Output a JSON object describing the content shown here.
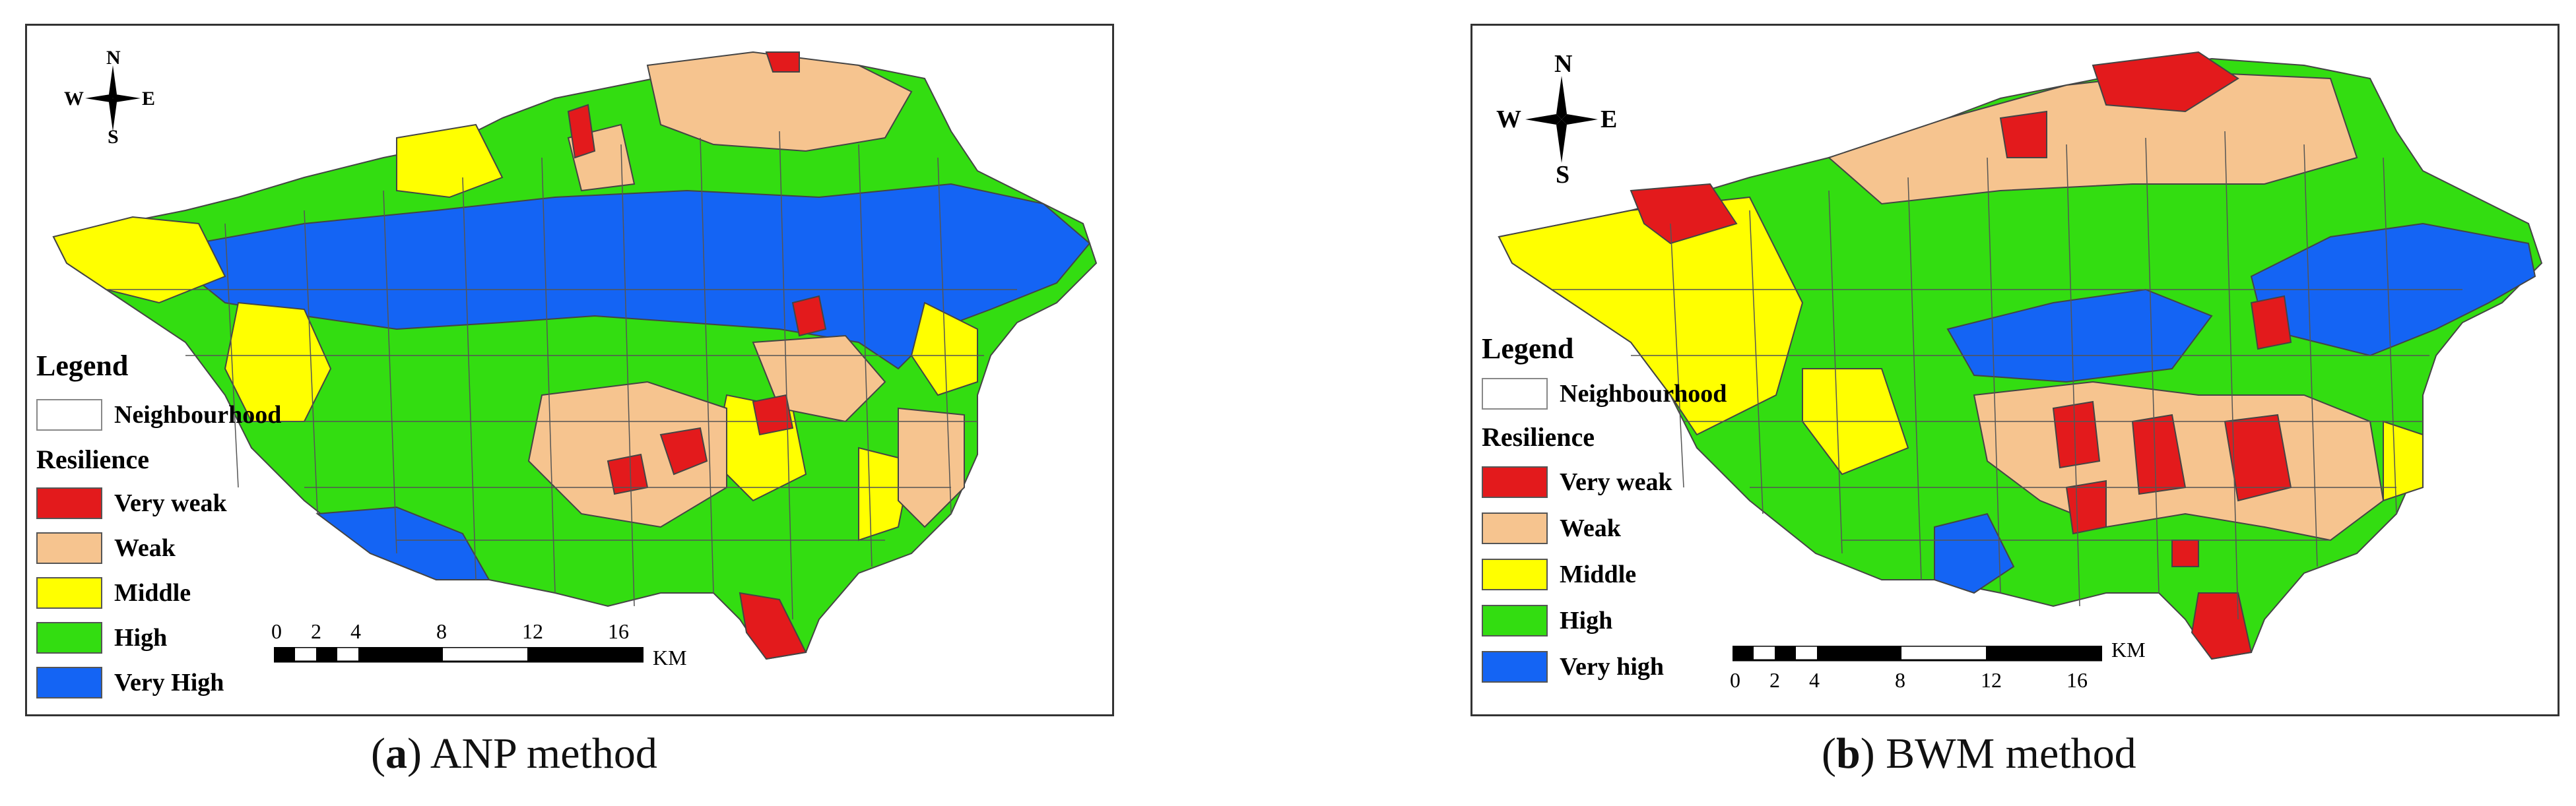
{
  "panels": [
    {
      "compass": {
        "n": "N",
        "s": "S",
        "e": "E",
        "w": "W"
      },
      "legend": {
        "title": "Legend",
        "neighbourhood": "Neighbourhood",
        "resilience_title": "Resilience",
        "classes": [
          {
            "label": "Very weak",
            "color": "#e31a1c"
          },
          {
            "label": "Weak",
            "color": "#f6c48f"
          },
          {
            "label": "Middle",
            "color": "#ffff00"
          },
          {
            "label": "High",
            "color": "#33dd11"
          },
          {
            "label": "Very High",
            "color": "#1464f4"
          }
        ]
      },
      "scale": {
        "ticks": [
          "0",
          "2",
          "4",
          "8",
          "12",
          "16"
        ],
        "unit": "KM"
      },
      "caption": {
        "letter": "a",
        "text": ") ANP method"
      }
    },
    {
      "compass": {
        "n": "N",
        "s": "S",
        "e": "E",
        "w": "W"
      },
      "legend": {
        "title": "Legend",
        "neighbourhood": "Neighbourhood",
        "resilience_title": "Resilience",
        "classes": [
          {
            "label": "Very weak",
            "color": "#e31a1c"
          },
          {
            "label": "Weak",
            "color": "#f6c48f"
          },
          {
            "label": "Middle",
            "color": "#ffff00"
          },
          {
            "label": "High",
            "color": "#33dd11"
          },
          {
            "label": "Very high",
            "color": "#1464f4"
          }
        ]
      },
      "scale": {
        "ticks": [
          "0",
          "2",
          "4",
          "8",
          "12",
          "16"
        ],
        "unit": "KM"
      },
      "caption": {
        "letter": "b",
        "text": ") BWM method"
      }
    }
  ]
}
